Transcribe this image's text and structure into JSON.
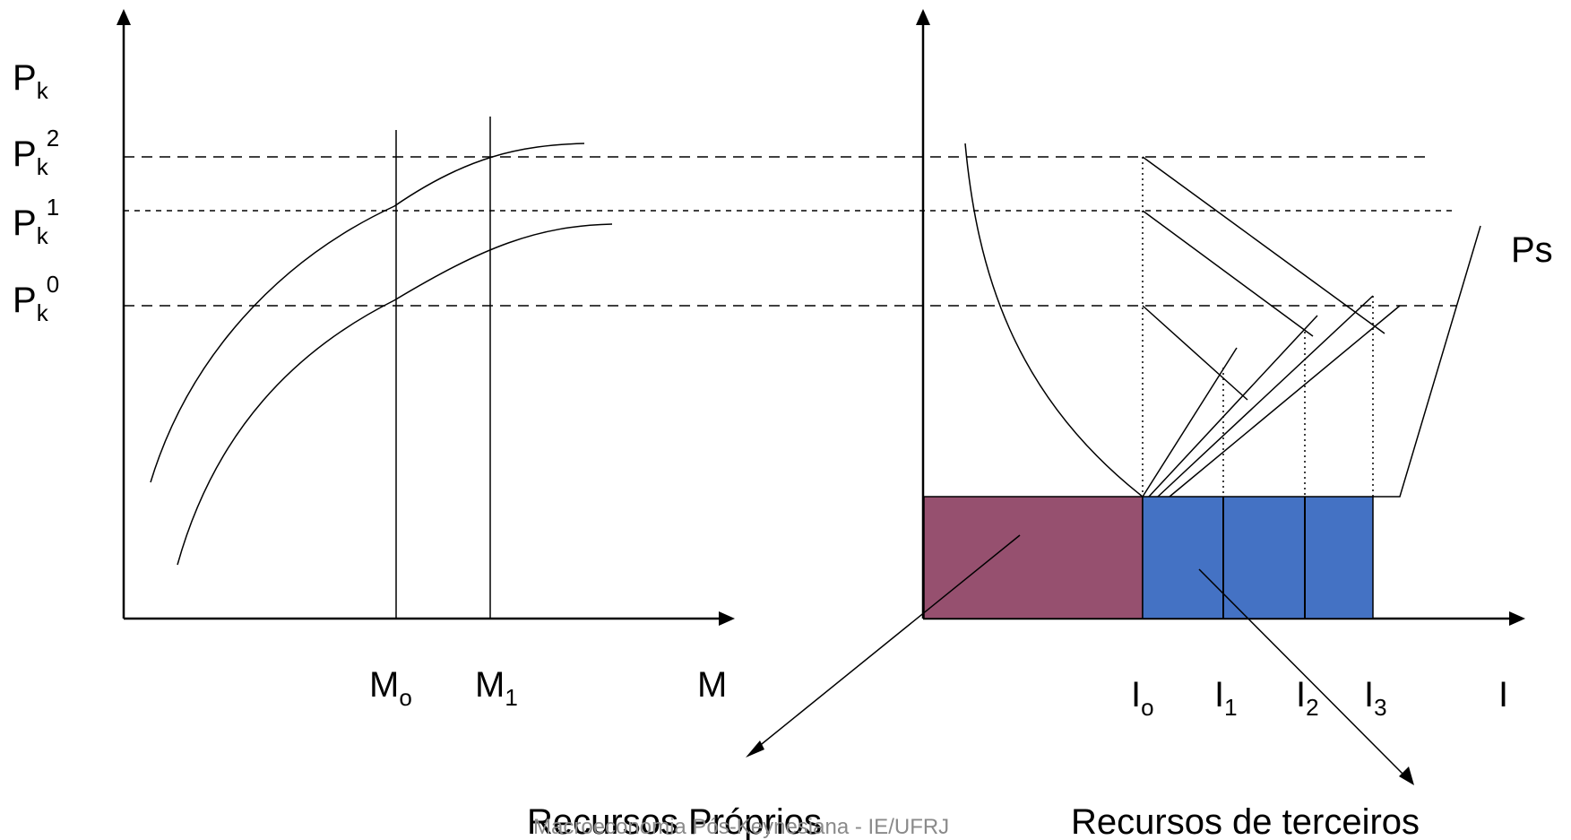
{
  "left_panel": {
    "y_axis_label": "P",
    "y_axis_label_sub": "k",
    "price_levels": [
      {
        "base": "P",
        "sub": "k",
        "sup": "2"
      },
      {
        "base": "P",
        "sub": "k",
        "sup": "1"
      },
      {
        "base": "P",
        "sub": "k",
        "sup": "0"
      }
    ],
    "m0": {
      "base": "M",
      "sub": "o"
    },
    "m1": {
      "base": "M",
      "sub": "1"
    },
    "x_axis_label": "M"
  },
  "right_panel": {
    "supply_label": "Ps",
    "i0": {
      "base": "I",
      "sub": "o"
    },
    "i1": {
      "base": "I",
      "sub": "1"
    },
    "i2": {
      "base": "I",
      "sub": "2"
    },
    "i3": {
      "base": "I",
      "sub": "3"
    },
    "x_axis_label": "I"
  },
  "annotations": {
    "own_resources": "Recursos Próprios",
    "third_party_resources": "Recursos de terceiros"
  },
  "footer": "Macroeconomia Pós-Keynesiana - IE/UFRJ",
  "colors": {
    "own_resources_fill": "#96506F",
    "third_party_fill": "#4472C4",
    "line": "#000000"
  }
}
